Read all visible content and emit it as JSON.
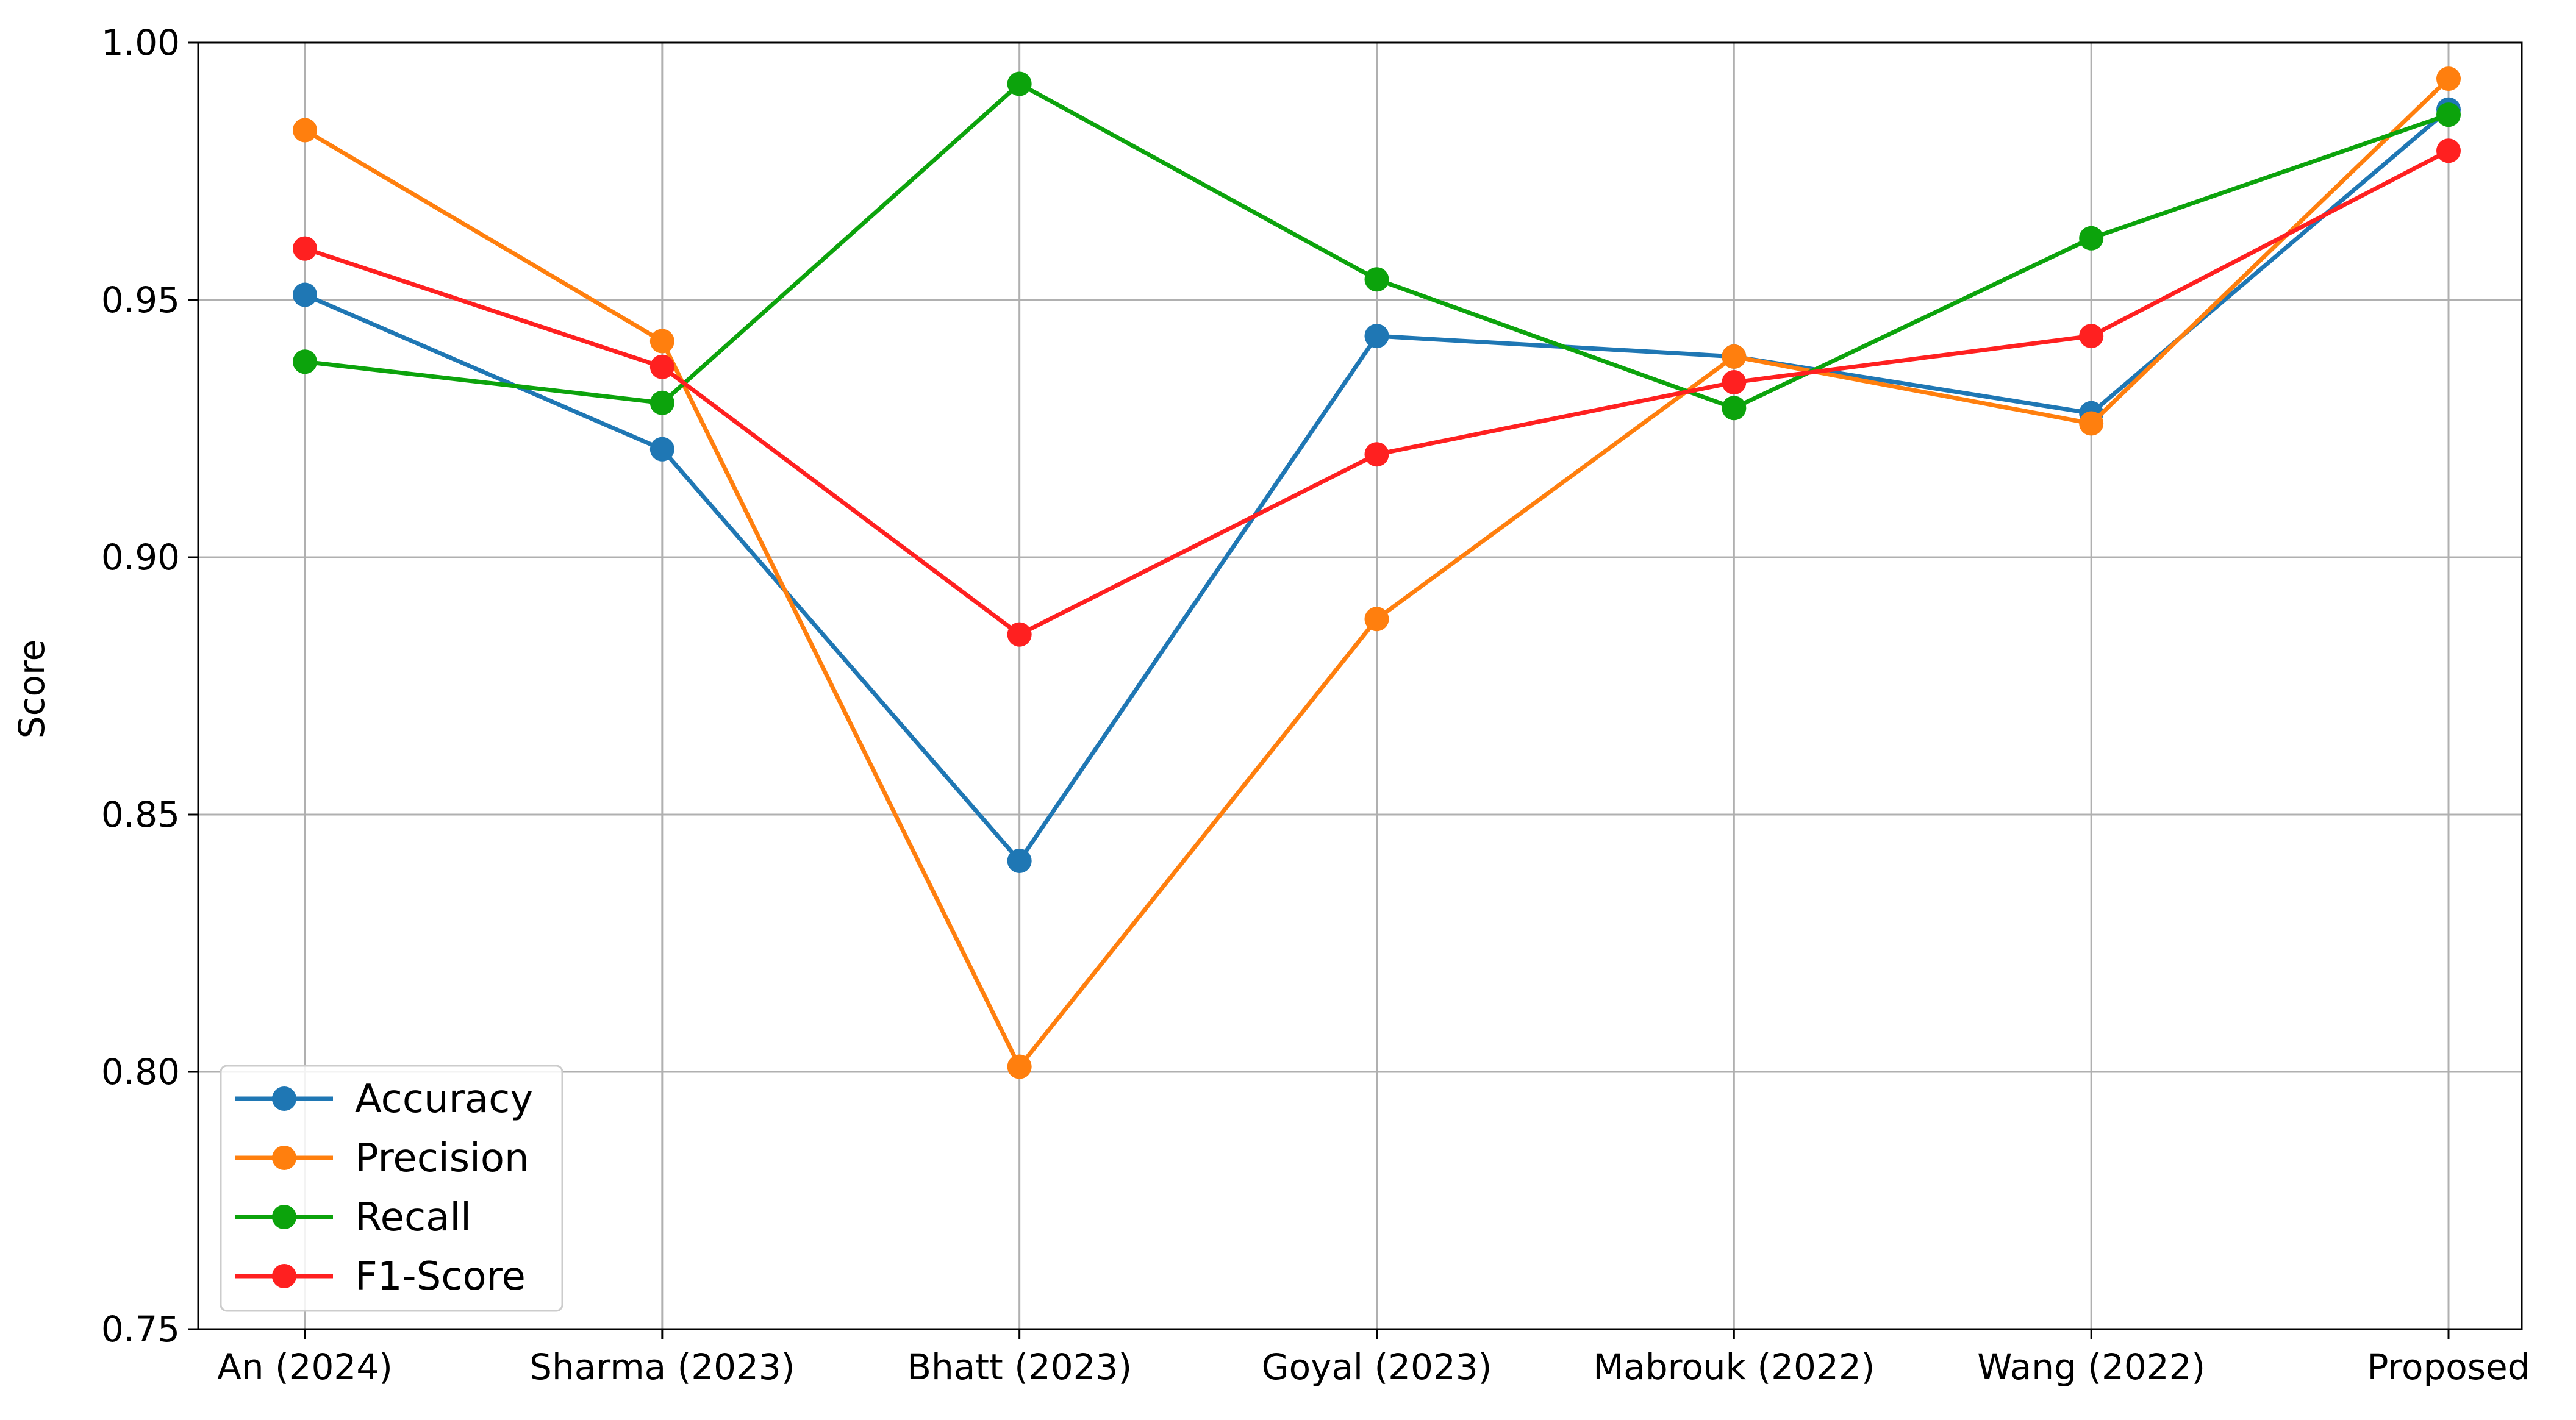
{
  "chart_data": {
    "type": "line",
    "title": "",
    "xlabel": "",
    "ylabel": "Score",
    "ylim": [
      0.75,
      1.0
    ],
    "yticks": [
      "0.75",
      "0.80",
      "0.85",
      "0.90",
      "0.95",
      "1.00"
    ],
    "grid": true,
    "legend_position": "lower-left",
    "categories": [
      "An (2024)",
      "Sharma (2023)",
      "Bhatt (2023)",
      "Goyal (2023)",
      "Mabrouk (2022)",
      "Wang (2022)",
      "Proposed"
    ],
    "series": [
      {
        "name": "Accuracy",
        "color": "#1f77b4",
        "values": [
          0.951,
          0.921,
          0.841,
          0.943,
          0.939,
          0.928,
          0.987
        ]
      },
      {
        "name": "Precision",
        "color": "#ff7f0e",
        "values": [
          0.983,
          0.942,
          0.801,
          0.888,
          0.939,
          0.926,
          0.993
        ]
      },
      {
        "name": "Recall",
        "color": "#0ca30c",
        "values": [
          0.938,
          0.93,
          0.992,
          0.954,
          0.929,
          0.962,
          0.986
        ]
      },
      {
        "name": "F1-Score",
        "color": "#ff2020",
        "values": [
          0.96,
          0.937,
          0.885,
          0.92,
          0.934,
          0.943,
          0.979
        ]
      }
    ]
  }
}
